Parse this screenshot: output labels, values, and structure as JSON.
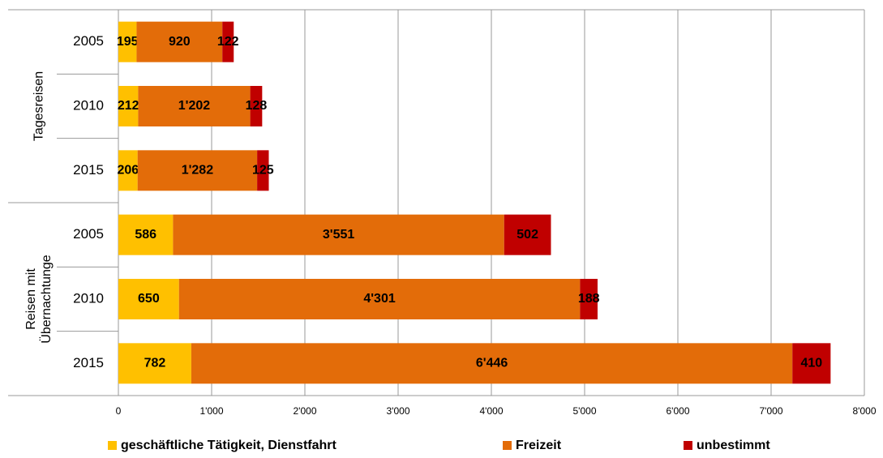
{
  "chart_data": {
    "type": "stacked-barh",
    "groups": [
      {
        "name": "Tagesreisen",
        "categories": [
          "2005",
          "2010",
          "2015"
        ]
      },
      {
        "name": "Reisen mit Übernachtunge",
        "categories": [
          "2005",
          "2010",
          "2015"
        ]
      }
    ],
    "series": [
      {
        "name": "geschäftliche Tätigkeit, Dienstfahrt",
        "color": "#ffc000",
        "values": [
          195,
          212,
          206,
          586,
          650,
          782
        ],
        "value_labels": [
          "195",
          "212",
          "206",
          "586",
          "650",
          "782"
        ]
      },
      {
        "name": "Freizeit",
        "color": "#e36c09",
        "values": [
          920,
          1202,
          1282,
          3551,
          4301,
          6446
        ],
        "value_labels": [
          "920",
          "1'202",
          "1'282",
          "3'551",
          "4'301",
          "6'446"
        ]
      },
      {
        "name": "unbestimmt",
        "color": "#c00000",
        "values": [
          122,
          128,
          125,
          502,
          188,
          410
        ],
        "value_labels": [
          "122",
          "128",
          "125",
          "502",
          "188",
          "410"
        ]
      }
    ],
    "xlim": [
      0,
      8000
    ],
    "xticks": [
      0,
      {
        "value": 1000,
        "label": "1'000"
      },
      {
        "value": 2000,
        "label": "2'000"
      },
      {
        "value": 3000,
        "label": "3'000"
      },
      {
        "value": 4000,
        "label": "4'000"
      },
      {
        "value": 5000,
        "label": "5'000"
      },
      {
        "value": 6000,
        "label": "6'000"
      },
      {
        "value": 7000,
        "label": "7'000"
      },
      {
        "value": 8000,
        "label": "8'000"
      }
    ],
    "grid": true,
    "legend": "bottom"
  }
}
